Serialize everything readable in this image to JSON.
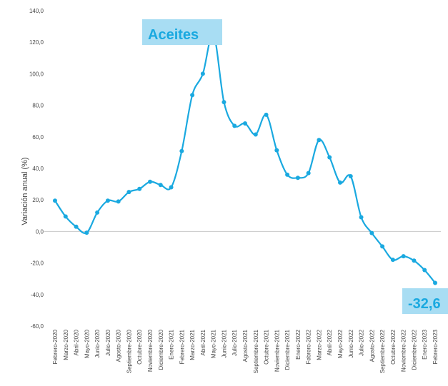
{
  "chart_data": {
    "type": "line",
    "y_label": "Variación anual (%)",
    "annotations": [
      {
        "text": "Aceites"
      },
      {
        "text": "-32,6"
      }
    ],
    "categories": [
      "Febrero-2020",
      "Marzo-2020",
      "Abril-2020",
      "Mayo-2020",
      "Junio-2020",
      "Julio-2020",
      "Agosto-2020",
      "Septiembre-2020",
      "Octubre-2020",
      "Noviembre-2020",
      "Diciembre-2020",
      "Enero-2021",
      "Febrero-2021",
      "Marzo-2021",
      "Abril-2021",
      "Mayo-2021",
      "Junio-2021",
      "Julio-2021",
      "Agosto-2021",
      "Septiembre-2021",
      "Octubre-2021",
      "Noviembre-2021",
      "Diciembre-2021",
      "Enero-2022",
      "Febrero-2022",
      "Marzo-2022",
      "Abril-2022",
      "Mayo-2022",
      "Junio-2022",
      "Julio-2022",
      "Agosto-2022",
      "Septiembre-2022",
      "Octubre-2022",
      "Noviembre-2022",
      "Diciembre-2022",
      "Enero-2023",
      "Febrero-2023"
    ],
    "series": [
      {
        "name": "Aceites",
        "color": "#1aa9e0",
        "values": [
          19.5,
          9.5,
          3,
          -0.8,
          12,
          19.5,
          19,
          25,
          27,
          31.5,
          29.5,
          28,
          51,
          86.5,
          100,
          125,
          82,
          67,
          68.5,
          61.5,
          74,
          51.5,
          36,
          34,
          37,
          58,
          47,
          31,
          35,
          9,
          -1,
          -9.5,
          -18,
          -15.7,
          -18.5,
          -24.5,
          -32.6
        ]
      }
    ],
    "ylim": [
      -60,
      140
    ],
    "yticks": [
      {
        "value": -60,
        "label": "-60,0"
      },
      {
        "value": -40,
        "label": "-40,0"
      },
      {
        "value": -20,
        "label": "-20,0"
      },
      {
        "value": 0,
        "label": "0,0"
      },
      {
        "value": 20,
        "label": "20,0"
      },
      {
        "value": 40,
        "label": "40,0"
      },
      {
        "value": 60,
        "label": "60,0"
      },
      {
        "value": 80,
        "label": "80,0"
      },
      {
        "value": 100,
        "label": "100,0"
      },
      {
        "value": 120,
        "label": "120,0"
      },
      {
        "value": 140,
        "label": "140,0"
      }
    ],
    "grid": false
  }
}
